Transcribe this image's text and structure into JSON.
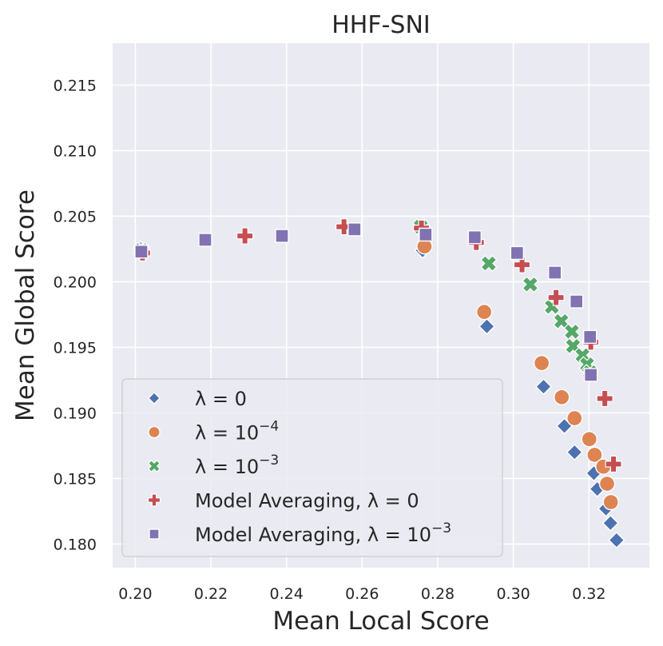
{
  "chart_data": {
    "type": "scatter",
    "title": "HHF-SNI",
    "xlabel": "Mean Local Score",
    "ylabel": "Mean Global Score",
    "xlim": [
      0.194,
      0.336
    ],
    "ylim": [
      0.1782,
      0.2182
    ],
    "xticks": [
      0.2,
      0.22,
      0.24,
      0.26,
      0.28,
      0.3,
      0.32
    ],
    "xtick_labels": [
      "0.20",
      "0.22",
      "0.24",
      "0.26",
      "0.28",
      "0.30",
      "0.32"
    ],
    "yticks": [
      0.18,
      0.185,
      0.19,
      0.195,
      0.2,
      0.205,
      0.21,
      0.215
    ],
    "ytick_labels": [
      "0.180",
      "0.185",
      "0.190",
      "0.195",
      "0.200",
      "0.205",
      "0.210",
      "0.215"
    ],
    "grid": true,
    "legend_position": "bottom-left",
    "series": [
      {
        "name": "λ = 0",
        "legend_label": {
          "text": "λ = 0",
          "base": "0",
          "exp": ""
        },
        "marker": "diamond",
        "color": "#4c72b0",
        "points": [
          [
            0.2015,
            0.2025
          ],
          [
            0.276,
            0.2024
          ],
          [
            0.293,
            0.1966
          ],
          [
            0.308,
            0.192
          ],
          [
            0.3135,
            0.189
          ],
          [
            0.3162,
            0.187
          ],
          [
            0.3213,
            0.1854
          ],
          [
            0.3222,
            0.1842
          ],
          [
            0.3245,
            0.1827
          ],
          [
            0.3257,
            0.1816
          ],
          [
            0.3273,
            0.1803
          ]
        ]
      },
      {
        "name": "λ = 10^-4",
        "legend_label": {
          "text": "λ = 10",
          "base": "10",
          "exp": "−4"
        },
        "marker": "circle",
        "color": "#dd8452",
        "points": [
          [
            0.2018,
            0.2023
          ],
          [
            0.2765,
            0.2027
          ],
          [
            0.2923,
            0.1977
          ],
          [
            0.3075,
            0.1938
          ],
          [
            0.3128,
            0.1912
          ],
          [
            0.3162,
            0.1896
          ],
          [
            0.3201,
            0.188
          ],
          [
            0.3215,
            0.1868
          ],
          [
            0.3238,
            0.1859
          ],
          [
            0.3248,
            0.1846
          ],
          [
            0.3258,
            0.1832
          ]
        ]
      },
      {
        "name": "λ = 10^-3",
        "legend_label": {
          "text": "λ = 10",
          "base": "10",
          "exp": "−3"
        },
        "marker": "x",
        "color": "#55a868",
        "points": [
          [
            0.2016,
            0.2024
          ],
          [
            0.2755,
            0.2042
          ],
          [
            0.2935,
            0.2014
          ],
          [
            0.3045,
            0.1998
          ],
          [
            0.3102,
            0.1981
          ],
          [
            0.3127,
            0.197
          ],
          [
            0.3155,
            0.1962
          ],
          [
            0.3158,
            0.1951
          ],
          [
            0.3183,
            0.1944
          ],
          [
            0.3195,
            0.1937
          ],
          [
            0.3203,
            0.1931
          ]
        ]
      },
      {
        "name": "Model Averaging, λ = 0",
        "legend_label": {
          "text": "Model Averaging, λ = 0",
          "base": "0",
          "exp": ""
        },
        "marker": "plus",
        "color": "#c44e52",
        "points": [
          [
            0.2019,
            0.2022
          ],
          [
            0.229,
            0.2035
          ],
          [
            0.2552,
            0.2042
          ],
          [
            0.2757,
            0.2041
          ],
          [
            0.2902,
            0.203
          ],
          [
            0.3023,
            0.2013
          ],
          [
            0.3113,
            0.1988
          ],
          [
            0.3205,
            0.1954
          ],
          [
            0.3242,
            0.1911
          ],
          [
            0.3265,
            0.1861
          ]
        ]
      },
      {
        "name": "Model Averaging, λ = 10^-3",
        "legend_label": {
          "text": "Model Averaging, λ = 10",
          "base": "10",
          "exp": "−3"
        },
        "marker": "square",
        "color": "#8172b2",
        "points": [
          [
            0.2016,
            0.2023
          ],
          [
            0.2185,
            0.2032
          ],
          [
            0.2388,
            0.2035
          ],
          [
            0.258,
            0.204
          ],
          [
            0.2768,
            0.2036
          ],
          [
            0.2898,
            0.2034
          ],
          [
            0.301,
            0.2022
          ],
          [
            0.311,
            0.2007
          ],
          [
            0.3167,
            0.1985
          ],
          [
            0.3203,
            0.1958
          ],
          [
            0.3205,
            0.1929
          ]
        ]
      }
    ]
  }
}
